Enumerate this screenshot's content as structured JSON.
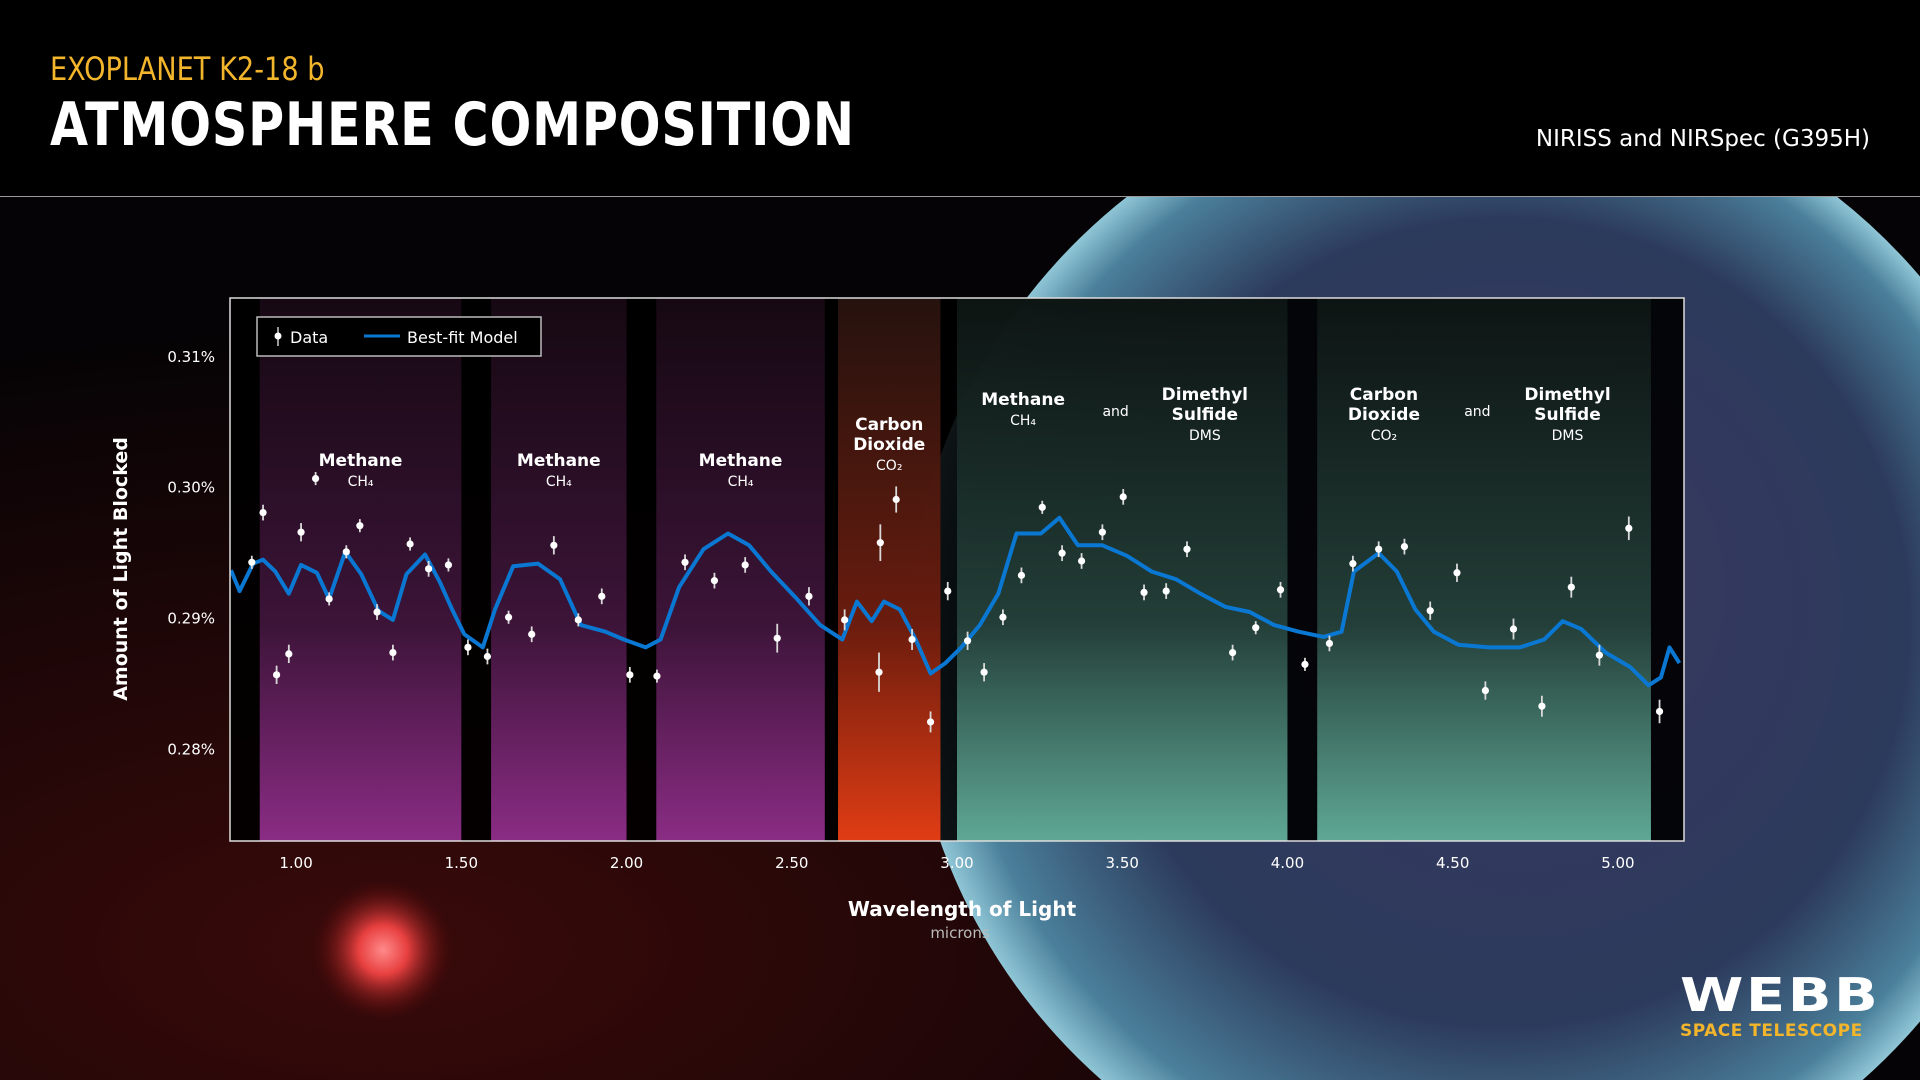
{
  "header": {
    "kicker": "EXOPLANET K2-18 b",
    "title": "ATMOSPHERE COMPOSITION",
    "instrument": "NIRISS and NIRSpec (G395H)"
  },
  "logo": {
    "name": "WEBB",
    "subtitle": "SPACE TELESCOPE"
  },
  "colors": {
    "model": "#0a78d2",
    "data": "#ffffff",
    "methane_band": "#7a2a78",
    "co2_band": "#d8401a",
    "dms_band": "#5aa894",
    "accent": "#f2b52b"
  },
  "chart_data": {
    "type": "scatter",
    "xlabel": "Wavelength of Light",
    "xunit": "microns",
    "ylabel": "Amount of Light Blocked",
    "xlim": [
      0.8,
      5.2
    ],
    "ylim": [
      0.273,
      0.3145
    ],
    "xticks": [
      1.0,
      1.5,
      2.0,
      2.5,
      3.0,
      3.5,
      4.0,
      4.5,
      5.0
    ],
    "xtick_labels": [
      "1.00",
      "1.50",
      "2.00",
      "2.50",
      "3.00",
      "3.50",
      "4.00",
      "4.50",
      "5.00"
    ],
    "yticks": [
      0.28,
      0.29,
      0.3,
      0.31
    ],
    "ytick_labels": [
      "0.28%",
      "0.29%",
      "0.30%",
      "0.31%"
    ],
    "grid": false,
    "legend": {
      "placement": "top-left",
      "entries": [
        "Data",
        "Best-fit Model"
      ]
    },
    "bands": [
      {
        "range": [
          0.89,
          1.5
        ],
        "kind": "methane",
        "label": [
          "Methane",
          "CH₄"
        ]
      },
      {
        "range": [
          1.59,
          2.0
        ],
        "kind": "methane",
        "label": [
          "Methane",
          "CH₄"
        ]
      },
      {
        "range": [
          2.09,
          2.6
        ],
        "kind": "methane",
        "label": [
          "Methane",
          "CH₄"
        ]
      },
      {
        "range": [
          2.64,
          2.95
        ],
        "kind": "co2",
        "label": [
          "Carbon",
          "Dioxide",
          "CO₂"
        ]
      },
      {
        "range": [
          3.0,
          4.0
        ],
        "kind": "dms",
        "labels": [
          [
            "Methane",
            "CH₄"
          ],
          [
            "and"
          ],
          [
            "Dimethyl",
            "Sulfide",
            "DMS"
          ]
        ]
      },
      {
        "range": [
          4.09,
          5.1
        ],
        "kind": "dms",
        "labels": [
          [
            "Carbon",
            "Dioxide",
            "CO₂"
          ],
          [
            "and"
          ],
          [
            "Dimethyl",
            "Sulfide",
            "DMS"
          ]
        ]
      }
    ],
    "series": [
      {
        "name": "Data",
        "type": "errorbar",
        "points": [
          [
            0.866,
            0.2943,
            0.0005
          ],
          [
            0.9,
            0.2981,
            0.0006
          ],
          [
            0.941,
            0.2857,
            0.0007
          ],
          [
            0.978,
            0.2873,
            0.0007
          ],
          [
            1.015,
            0.2966,
            0.0007
          ],
          [
            1.059,
            0.3007,
            0.0005
          ],
          [
            1.1,
            0.2915,
            0.0005
          ],
          [
            1.152,
            0.2951,
            0.0005
          ],
          [
            1.193,
            0.2971,
            0.0005
          ],
          [
            1.245,
            0.2905,
            0.0006
          ],
          [
            1.293,
            0.2874,
            0.0006
          ],
          [
            1.345,
            0.2957,
            0.0005
          ],
          [
            1.401,
            0.2938,
            0.0006
          ],
          [
            1.461,
            0.2941,
            0.0005
          ],
          [
            1.52,
            0.2878,
            0.0006
          ],
          [
            1.579,
            0.2871,
            0.0006
          ],
          [
            1.643,
            0.2901,
            0.0005
          ],
          [
            1.713,
            0.2888,
            0.0006
          ],
          [
            1.78,
            0.2956,
            0.0007
          ],
          [
            1.854,
            0.2899,
            0.0005
          ],
          [
            1.925,
            0.2917,
            0.0006
          ],
          [
            2.01,
            0.2857,
            0.0006
          ],
          [
            2.092,
            0.2856,
            0.0005
          ],
          [
            2.177,
            0.2943,
            0.0006
          ],
          [
            2.266,
            0.2929,
            0.0006
          ],
          [
            2.359,
            0.2941,
            0.0006
          ],
          [
            2.456,
            0.2885,
            0.0011
          ],
          [
            2.552,
            0.2917,
            0.0007
          ],
          [
            2.66,
            0.2899,
            0.0008
          ],
          [
            2.768,
            0.2958,
            0.0014
          ],
          [
            2.764,
            0.2859,
            0.0015
          ],
          [
            2.816,
            0.2991,
            0.001
          ],
          [
            2.864,
            0.2884,
            0.0008
          ],
          [
            2.92,
            0.2821,
            0.0008
          ],
          [
            2.972,
            0.2921,
            0.0007
          ],
          [
            3.032,
            0.2883,
            0.0007
          ],
          [
            3.082,
            0.2859,
            0.0007
          ],
          [
            3.139,
            0.2901,
            0.0006
          ],
          [
            3.195,
            0.2933,
            0.0006
          ],
          [
            3.258,
            0.2985,
            0.0005
          ],
          [
            3.318,
            0.295,
            0.0006
          ],
          [
            3.377,
            0.2944,
            0.0006
          ],
          [
            3.44,
            0.2966,
            0.0006
          ],
          [
            3.503,
            0.2993,
            0.0006
          ],
          [
            3.566,
            0.292,
            0.0006
          ],
          [
            3.633,
            0.2921,
            0.0006
          ],
          [
            3.696,
            0.2953,
            0.0006
          ],
          [
            3.834,
            0.2874,
            0.0006
          ],
          [
            3.904,
            0.2893,
            0.0005
          ],
          [
            3.979,
            0.2922,
            0.0006
          ],
          [
            4.053,
            0.2865,
            0.0005
          ],
          [
            4.127,
            0.2881,
            0.0006
          ],
          [
            4.198,
            0.2942,
            0.0006
          ],
          [
            4.276,
            0.2953,
            0.0006
          ],
          [
            4.354,
            0.2955,
            0.0006
          ],
          [
            4.432,
            0.2906,
            0.0007
          ],
          [
            4.513,
            0.2935,
            0.0007
          ],
          [
            4.599,
            0.2845,
            0.0007
          ],
          [
            4.684,
            0.2892,
            0.0008
          ],
          [
            4.77,
            0.2833,
            0.0008
          ],
          [
            4.859,
            0.2924,
            0.0008
          ],
          [
            4.944,
            0.2872,
            0.0008
          ],
          [
            5.033,
            0.2969,
            0.0009
          ],
          [
            5.126,
            0.2829,
            0.0009
          ]
        ]
      },
      {
        "name": "Best-fit Model",
        "type": "line",
        "points": [
          [
            0.803,
            0.2937
          ],
          [
            0.829,
            0.2921
          ],
          [
            0.87,
            0.2942
          ],
          [
            0.9,
            0.2945
          ],
          [
            0.937,
            0.2936
          ],
          [
            0.978,
            0.2919
          ],
          [
            1.015,
            0.2941
          ],
          [
            1.063,
            0.2935
          ],
          [
            1.1,
            0.2915
          ],
          [
            1.149,
            0.2951
          ],
          [
            1.197,
            0.2934
          ],
          [
            1.249,
            0.2906
          ],
          [
            1.293,
            0.2899
          ],
          [
            1.334,
            0.2934
          ],
          [
            1.39,
            0.2949
          ],
          [
            1.435,
            0.2928
          ],
          [
            1.472,
            0.2907
          ],
          [
            1.509,
            0.2888
          ],
          [
            1.565,
            0.2878
          ],
          [
            1.602,
            0.2907
          ],
          [
            1.657,
            0.294
          ],
          [
            1.732,
            0.2942
          ],
          [
            1.799,
            0.293
          ],
          [
            1.862,
            0.2895
          ],
          [
            1.936,
            0.289
          ],
          [
            1.992,
            0.2884
          ],
          [
            2.058,
            0.2878
          ],
          [
            2.103,
            0.2884
          ],
          [
            2.159,
            0.2924
          ],
          [
            2.233,
            0.2953
          ],
          [
            2.307,
            0.2965
          ],
          [
            2.371,
            0.2956
          ],
          [
            2.437,
            0.2936
          ],
          [
            2.512,
            0.2916
          ],
          [
            2.586,
            0.2895
          ],
          [
            2.653,
            0.2884
          ],
          [
            2.697,
            0.2913
          ],
          [
            2.742,
            0.2898
          ],
          [
            2.779,
            0.2913
          ],
          [
            2.827,
            0.2907
          ],
          [
            2.875,
            0.2884
          ],
          [
            2.92,
            0.2858
          ],
          [
            2.965,
            0.2866
          ],
          [
            3.013,
            0.2878
          ],
          [
            3.069,
            0.2895
          ],
          [
            3.125,
            0.2919
          ],
          [
            3.18,
            0.2965
          ],
          [
            3.254,
            0.2965
          ],
          [
            3.31,
            0.2977
          ],
          [
            3.366,
            0.2956
          ],
          [
            3.44,
            0.2956
          ],
          [
            3.514,
            0.2948
          ],
          [
            3.589,
            0.2936
          ],
          [
            3.663,
            0.293
          ],
          [
            3.737,
            0.2919
          ],
          [
            3.812,
            0.2909
          ],
          [
            3.886,
            0.2905
          ],
          [
            3.96,
            0.2895
          ],
          [
            4.034,
            0.289
          ],
          [
            4.109,
            0.2886
          ],
          [
            4.164,
            0.289
          ],
          [
            4.201,
            0.2936
          ],
          [
            4.276,
            0.295
          ],
          [
            4.331,
            0.2936
          ],
          [
            4.387,
            0.2907
          ],
          [
            4.443,
            0.289
          ],
          [
            4.517,
            0.288
          ],
          [
            4.61,
            0.2878
          ],
          [
            4.703,
            0.2878
          ],
          [
            4.777,
            0.2884
          ],
          [
            4.833,
            0.2898
          ],
          [
            4.889,
            0.2892
          ],
          [
            4.963,
            0.2874
          ],
          [
            5.037,
            0.2863
          ],
          [
            5.093,
            0.2849
          ],
          [
            5.13,
            0.2855
          ],
          [
            5.156,
            0.2878
          ],
          [
            5.186,
            0.2866
          ]
        ]
      }
    ]
  }
}
